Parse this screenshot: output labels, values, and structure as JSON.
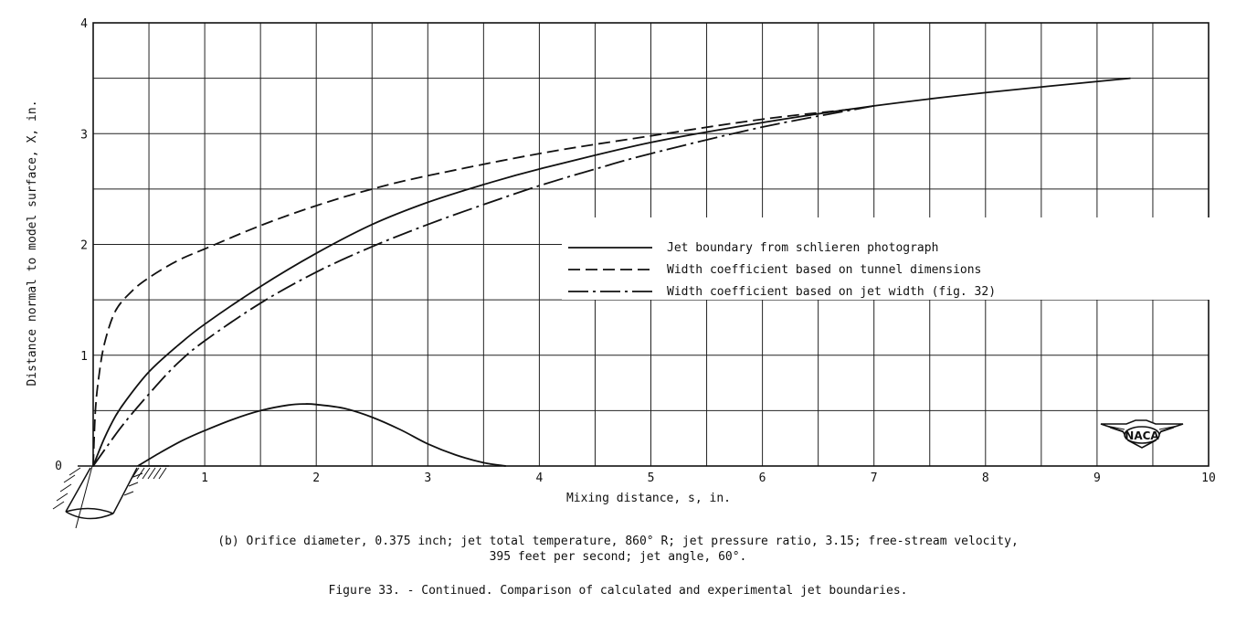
{
  "chart_data": {
    "type": "line",
    "xlabel": "Mixing distance, s, in.",
    "ylabel": "Distance normal to model surface, X, in.",
    "xlim": [
      0,
      10
    ],
    "ylim": [
      0,
      4
    ],
    "x_ticks": [
      "0",
      "1",
      "2",
      "3",
      "4",
      "5",
      "6",
      "7",
      "8",
      "9",
      "10"
    ],
    "y_ticks": [
      "0",
      "1",
      "2",
      "3",
      "4"
    ],
    "grid": true,
    "legend_position": "center-right",
    "series": [
      {
        "name": "Jet boundary from schlieren photograph",
        "style": "solid",
        "x": [
          0.0,
          0.1,
          0.2,
          0.3,
          0.5,
          0.75,
          1.0,
          1.5,
          2.0,
          2.5,
          3.0,
          3.5,
          4.0,
          5.0,
          6.0,
          7.0,
          8.0,
          9.3
        ],
        "y": [
          0.0,
          0.25,
          0.45,
          0.6,
          0.85,
          1.08,
          1.28,
          1.62,
          1.92,
          2.18,
          2.38,
          2.54,
          2.68,
          2.92,
          3.1,
          3.25,
          3.37,
          3.5
        ]
      },
      {
        "name": "Width coefficient based on tunnel dimensions",
        "style": "dashed",
        "x": [
          0.0,
          0.02,
          0.05,
          0.1,
          0.2,
          0.35,
          0.5,
          0.75,
          1.0,
          1.5,
          2.0,
          2.5,
          3.0,
          4.0,
          5.0,
          6.0,
          6.8
        ],
        "y": [
          0.0,
          0.5,
          0.8,
          1.1,
          1.4,
          1.58,
          1.7,
          1.85,
          1.96,
          2.17,
          2.35,
          2.5,
          2.62,
          2.82,
          2.98,
          3.13,
          3.22
        ]
      },
      {
        "name": "Width coefficient based on jet width (fig. 32)",
        "style": "dash-dot",
        "x": [
          0.0,
          0.25,
          0.5,
          0.75,
          1.0,
          1.5,
          2.0,
          2.5,
          3.0,
          3.5,
          4.0,
          4.5,
          5.0,
          6.0,
          7.0
        ],
        "y": [
          0.0,
          0.35,
          0.65,
          0.92,
          1.13,
          1.47,
          1.75,
          1.98,
          2.18,
          2.36,
          2.53,
          2.68,
          2.82,
          3.06,
          3.25
        ]
      },
      {
        "name": "",
        "style": "solid",
        "x": [
          0.4,
          0.6,
          0.8,
          1.0,
          1.25,
          1.5,
          1.75,
          1.9,
          2.0,
          2.25,
          2.5,
          2.75,
          3.0,
          3.25,
          3.5,
          3.7
        ],
        "y": [
          0.0,
          0.12,
          0.23,
          0.32,
          0.42,
          0.5,
          0.55,
          0.56,
          0.555,
          0.52,
          0.44,
          0.33,
          0.2,
          0.1,
          0.03,
          0.0
        ]
      }
    ]
  },
  "logo_text": "NACA",
  "caption": {
    "line1": "(b) Orifice diameter, 0.375 inch; jet total temperature, 860° R; jet pressure ratio, 3.15; free-stream velocity,",
    "line2": "395 feet per second; jet angle, 60°.",
    "figure": "Figure 33. - Continued.  Comparison of calculated and experimental jet boundaries."
  }
}
